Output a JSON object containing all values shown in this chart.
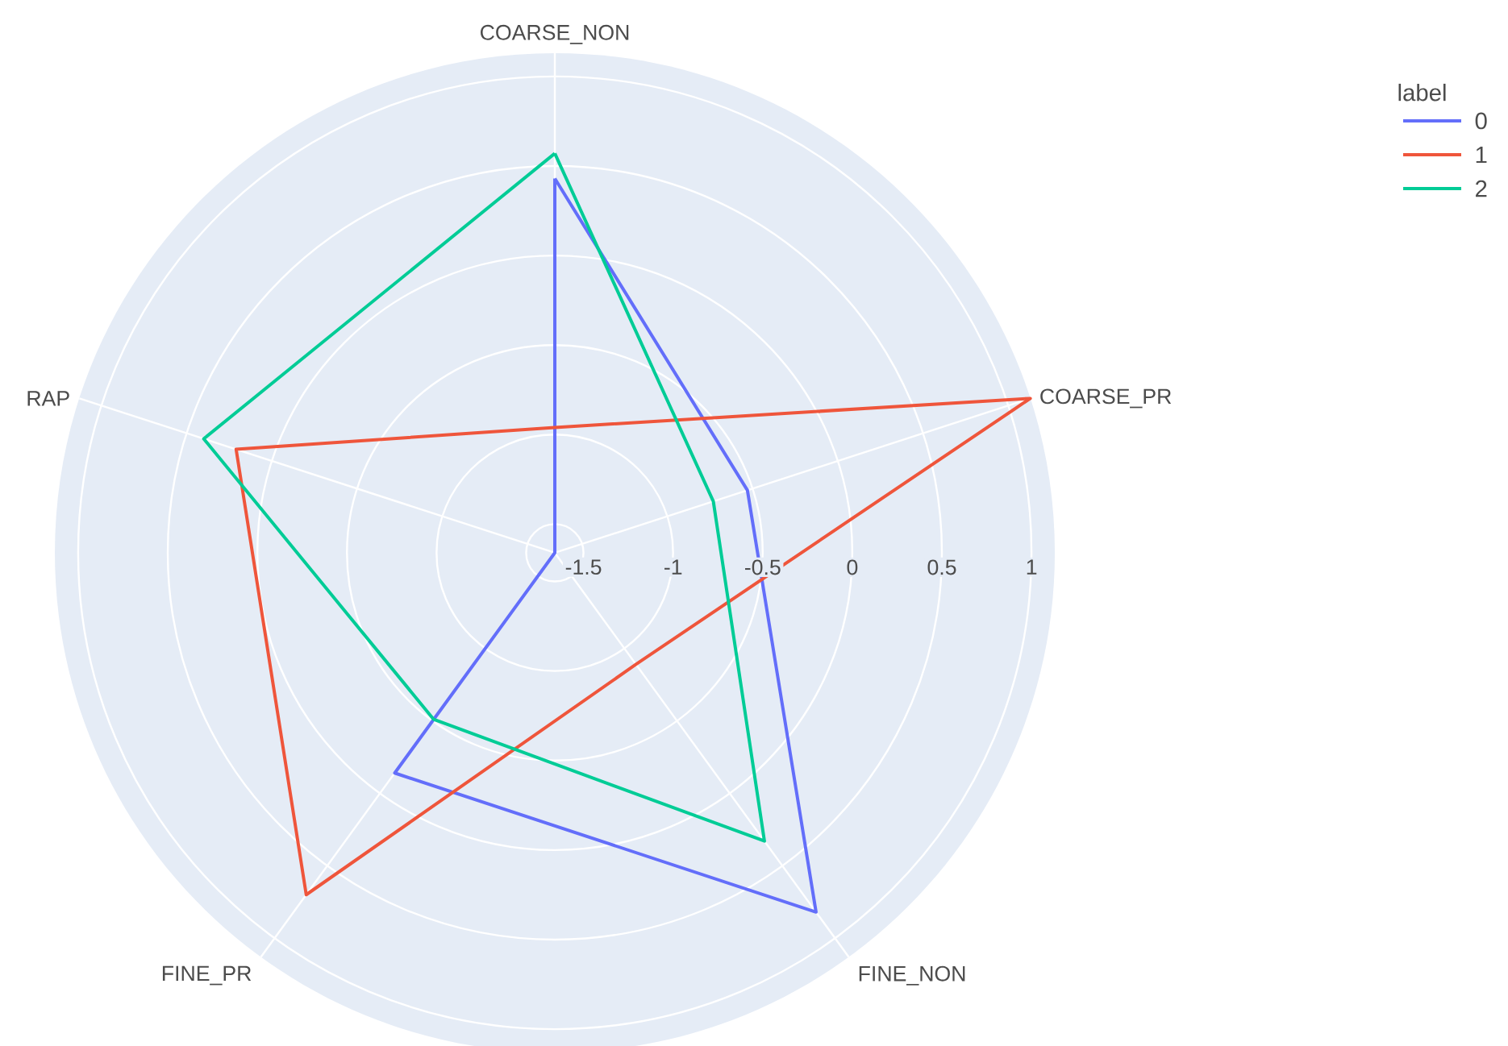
{
  "chart_data": {
    "type": "radar",
    "categories": [
      "COARSE_NON",
      "COARSE_PR",
      "FINE_NON",
      "FINE_PR",
      "RAP"
    ],
    "series": [
      {
        "name": "0",
        "color": "#636efa",
        "values": [
          0.43,
          -0.53,
          0.82,
          -0.14,
          -1.66
        ]
      },
      {
        "name": "1",
        "color": "#ef553b",
        "values": [
          -0.96,
          1.13,
          -0.89,
          0.7,
          0.21
        ]
      },
      {
        "name": "2",
        "color": "#00cc96",
        "values": [
          0.57,
          -0.73,
          0.33,
          -0.51,
          0.4
        ]
      }
    ],
    "ylim": [
      -1.66,
      1.13
    ],
    "yticks": [
      -1.5,
      -1,
      -0.5,
      0,
      0.5,
      1
    ],
    "grid": true,
    "legend": "top right",
    "legend_title": "label",
    "marker": "none",
    "line_style": "solid"
  }
}
